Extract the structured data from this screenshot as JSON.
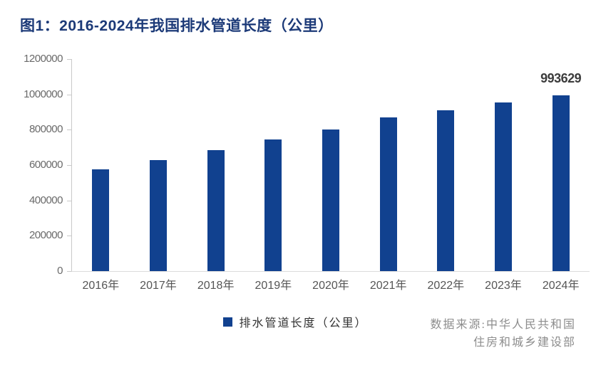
{
  "figure": {
    "title": "图1：2016-2024年我国排水管道长度（公里）",
    "source_line1": "数据来源:中华人民共和国",
    "source_line2": "住房和城乡建设部"
  },
  "chart_data": {
    "type": "bar",
    "title": "图1：2016-2024年我国排水管道长度（公里）",
    "categories": [
      "2016年",
      "2017年",
      "2018年",
      "2019年",
      "2020年",
      "2021年",
      "2022年",
      "2023年",
      "2024年"
    ],
    "series": [
      {
        "name": "排水管道长度（公里）",
        "values": [
          577000,
          630000,
          683000,
          744000,
          802000,
          870000,
          912000,
          954000,
          993629
        ]
      }
    ],
    "data_labels": [
      null,
      null,
      null,
      null,
      null,
      null,
      null,
      null,
      "993629"
    ],
    "xlabel": "",
    "ylabel": "",
    "ylim": [
      0,
      1200000
    ],
    "yticks": [
      0,
      200000,
      400000,
      600000,
      800000,
      1000000,
      1200000
    ],
    "ytick_labels": [
      "0",
      "200000",
      "400000",
      "600000",
      "800000",
      "1000000",
      "1200000"
    ],
    "grid": false,
    "legend_position": "bottom",
    "bar_color": "#11418F",
    "source": "数据来源:中华人民共和国住房和城乡建设部"
  },
  "colors": {
    "background": "#FFFFFF",
    "title": "#1C3A78",
    "bar": "#11418F",
    "axis_line": "#C9C9C9",
    "y_tick_label": "#6A6A6A",
    "x_tick_label": "#555555",
    "value_label": "#3C3C3C",
    "legend_text": "#333333",
    "source_text": "#8D8D8D"
  }
}
